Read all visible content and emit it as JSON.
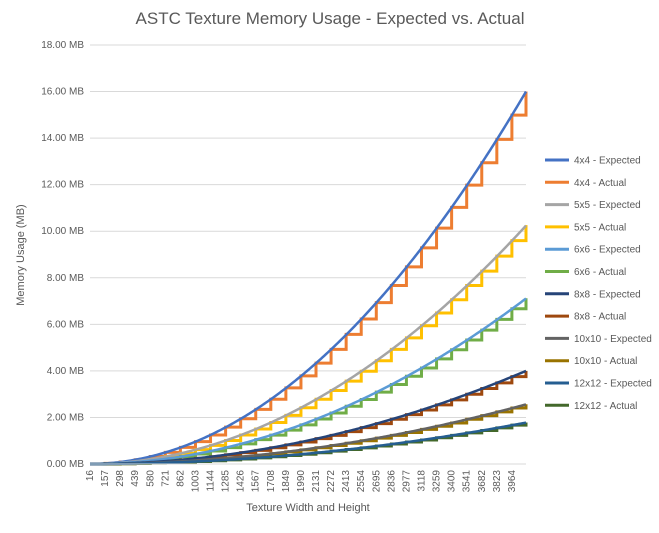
{
  "chart_data": {
    "type": "line",
    "title": "ASTC Texture Memory Usage - Expected vs. Actual",
    "xlabel": "Texture Width and Height",
    "ylabel": "Memory Usage (MB)",
    "x_range": [
      16,
      4096
    ],
    "ylim": [
      0,
      18
    ],
    "y_ticks": [
      0,
      2,
      4,
      6,
      8,
      10,
      12,
      14,
      16,
      18
    ],
    "y_tick_labels": [
      "0.00 MB",
      "2.00 MB",
      "4.00 MB",
      "6.00 MB",
      "8.00 MB",
      "10.00 MB",
      "12.00 MB",
      "14.00 MB",
      "16.00 MB",
      "18.00 MB"
    ],
    "x_tick_labels": [
      "16",
      "157",
      "298",
      "439",
      "580",
      "721",
      "862",
      "1003",
      "1144",
      "1285",
      "1426",
      "1567",
      "1708",
      "1849",
      "1990",
      "2131",
      "2272",
      "2413",
      "2554",
      "2695",
      "2836",
      "2977",
      "3118",
      "3259",
      "3400",
      "3541",
      "3682",
      "3823",
      "3964"
    ],
    "grid": {
      "horizontal": true,
      "vertical": false
    },
    "legend_position": "right",
    "series": [
      {
        "name": "4x4 - Expected",
        "block": 4,
        "kind": "expected",
        "color": "#4472C4"
      },
      {
        "name": "4x4 - Actual",
        "block": 4,
        "kind": "actual",
        "color": "#ED7D31"
      },
      {
        "name": "5x5 - Expected",
        "block": 5,
        "kind": "expected",
        "color": "#A5A5A5"
      },
      {
        "name": "5x5 - Actual",
        "block": 5,
        "kind": "actual",
        "color": "#FFC000"
      },
      {
        "name": "6x6 - Expected",
        "block": 6,
        "kind": "expected",
        "color": "#5B9BD5"
      },
      {
        "name": "6x6 - Actual",
        "block": 6,
        "kind": "actual",
        "color": "#70AD47"
      },
      {
        "name": "8x8 - Expected",
        "block": 8,
        "kind": "expected",
        "color": "#264478"
      },
      {
        "name": "8x8 - Actual",
        "block": 8,
        "kind": "actual",
        "color": "#9E480E"
      },
      {
        "name": "10x10 - Expected",
        "block": 10,
        "kind": "expected",
        "color": "#636363"
      },
      {
        "name": "10x10 - Actual",
        "block": 10,
        "kind": "actual",
        "color": "#997300"
      },
      {
        "name": "12x12 - Expected",
        "block": 12,
        "kind": "expected",
        "color": "#255E91"
      },
      {
        "name": "12x12 - Actual",
        "block": 12,
        "kind": "actual",
        "color": "#43682B"
      }
    ]
  }
}
